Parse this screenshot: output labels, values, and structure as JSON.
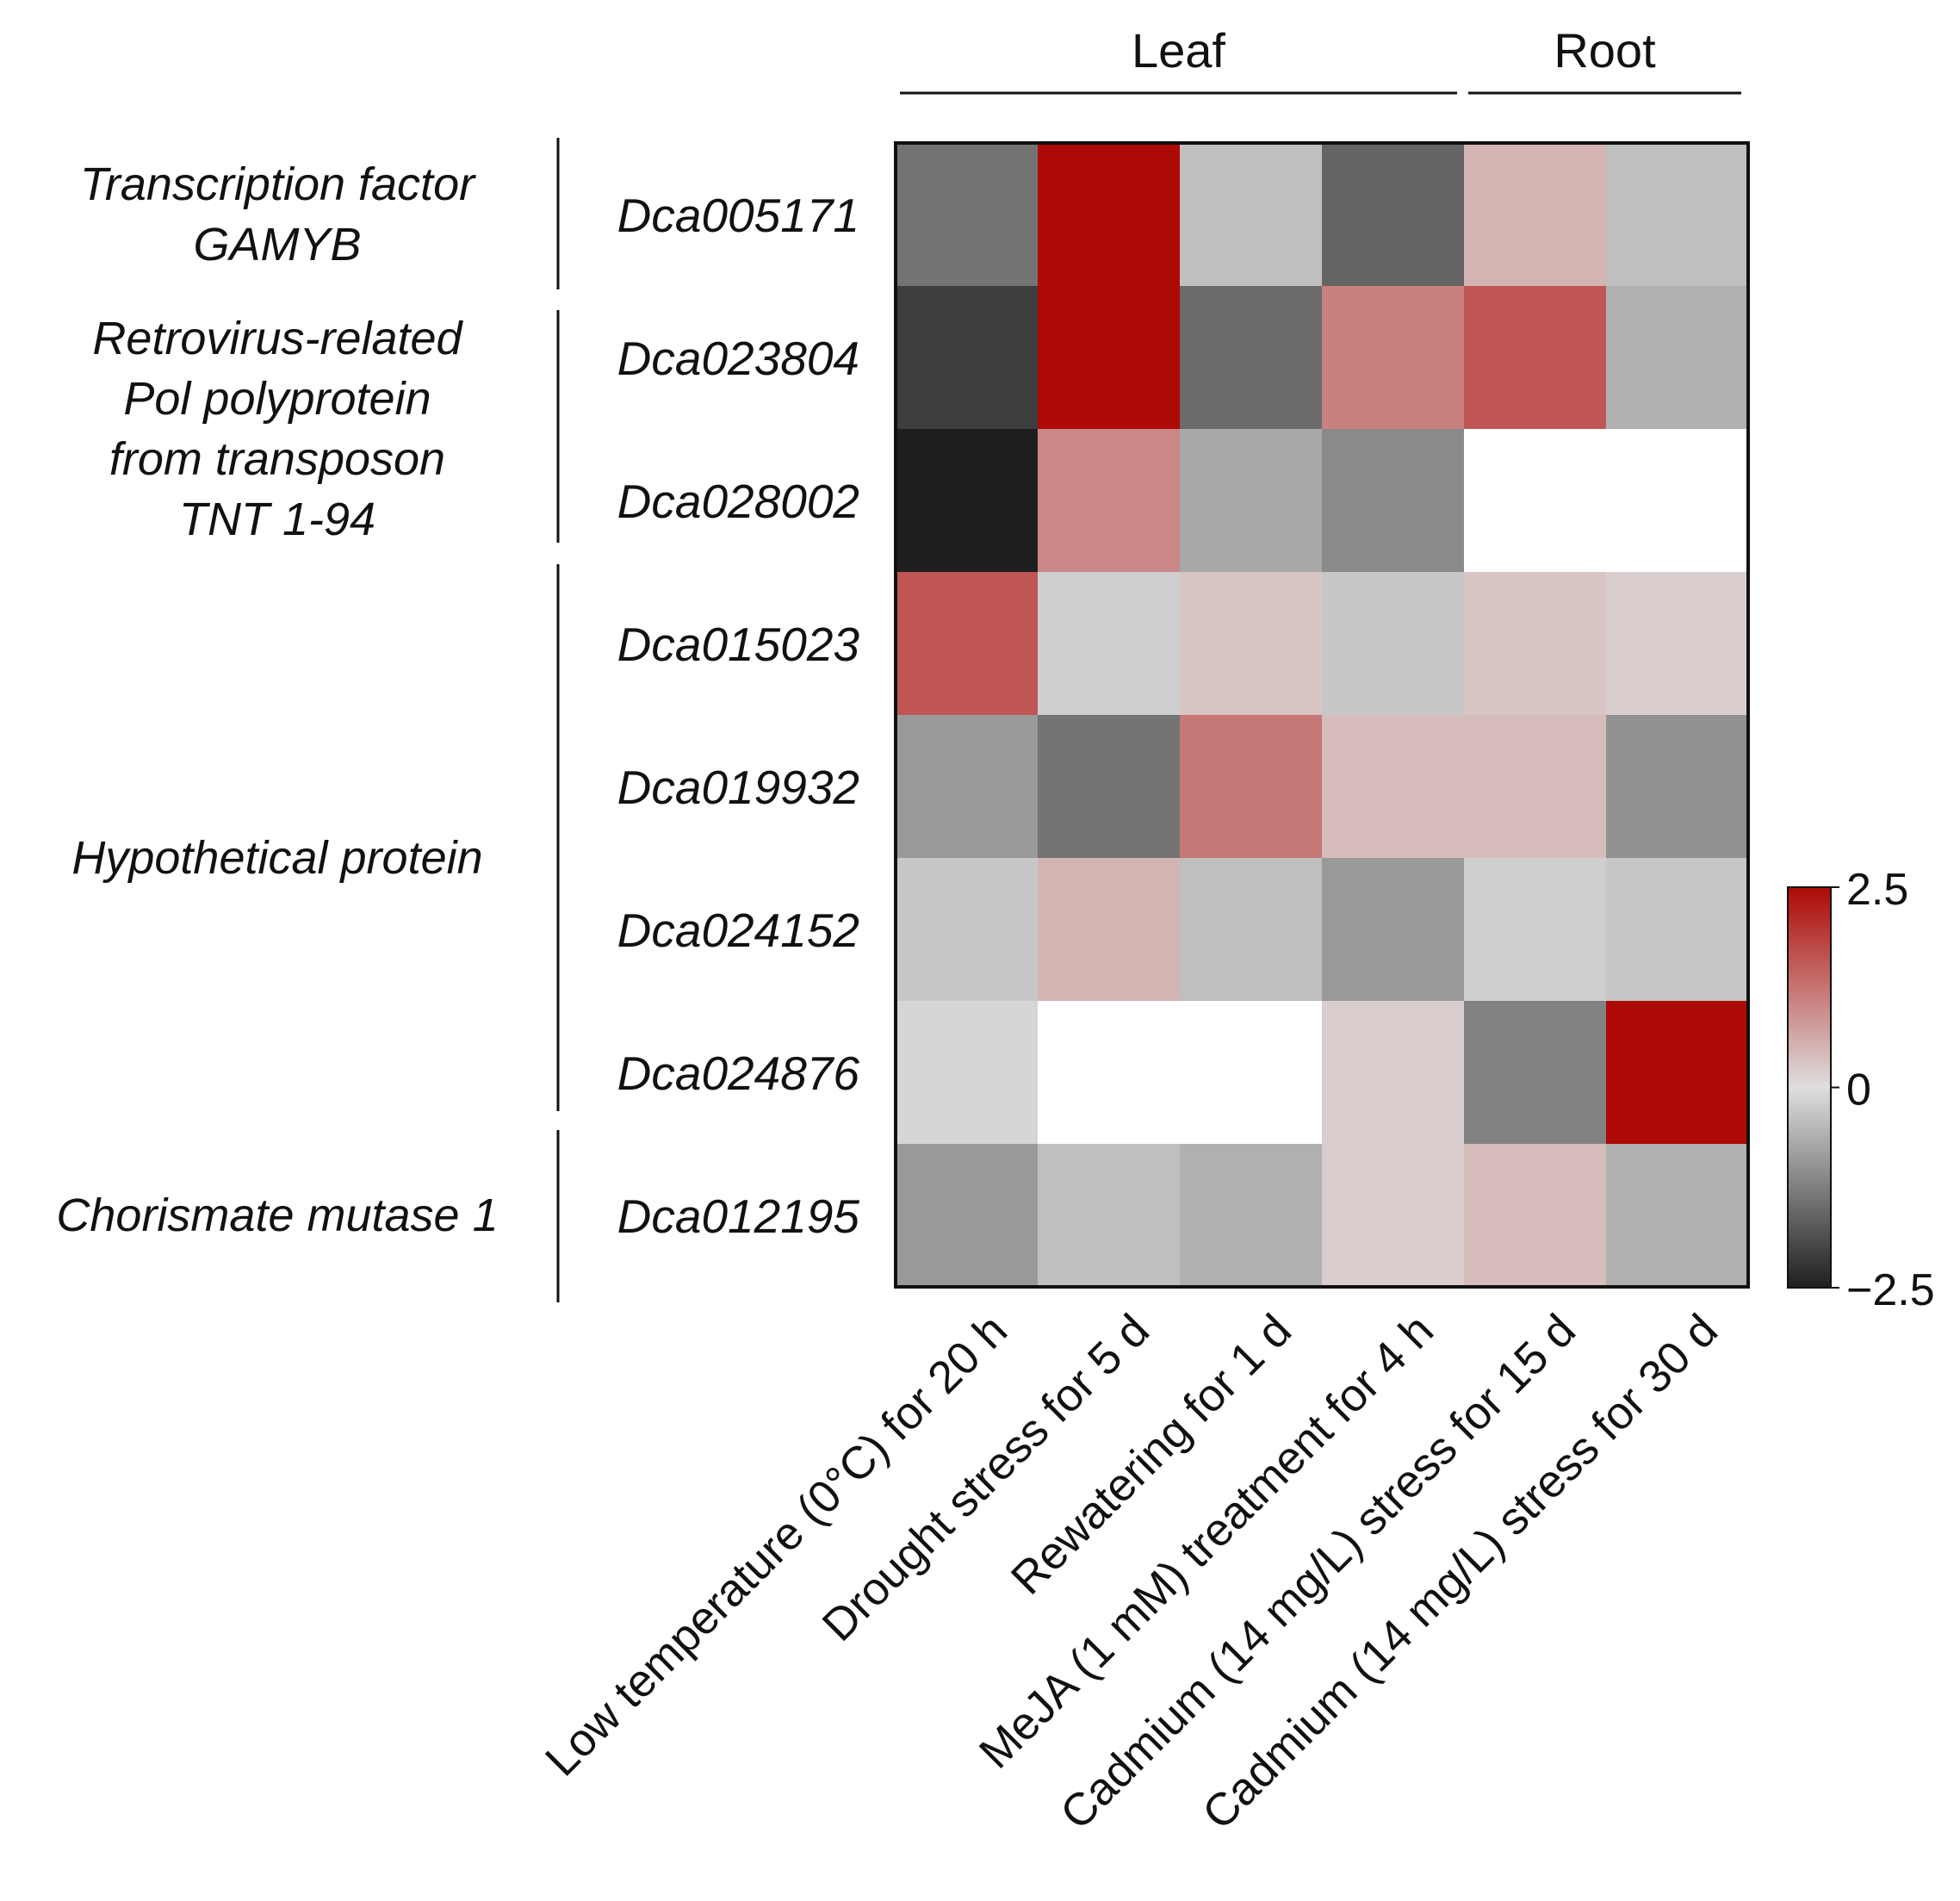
{
  "chart_data": {
    "type": "heatmap",
    "tissue_groups": [
      {
        "label": "Leaf",
        "columns": [
          0,
          1,
          2,
          3
        ]
      },
      {
        "label": "Root",
        "columns": [
          4,
          5
        ]
      }
    ],
    "columns": [
      "Low temperature (0°C) for 20 h",
      "Drought stress for 5 d",
      "Rewatering for 1 d",
      "MeJA (1 mM) treatment for 4 h",
      "Cadmium (14 mg/L) stress for 15 d",
      "Cadmium (14 mg/L) stress for 30 d"
    ],
    "rows": [
      "Dca005171",
      "Dca023804",
      "Dca028002",
      "Dca015023",
      "Dca019932",
      "Dca024152",
      "Dca024876",
      "Dca012195"
    ],
    "gene_groups": [
      {
        "lines": [
          "Transcription factor",
          "GAMYB"
        ],
        "rows": [
          0,
          0
        ]
      },
      {
        "lines": [
          "Retrovirus-related",
          "Pol polyprotein",
          "from transposon",
          "TNT 1-94"
        ],
        "rows": [
          1,
          2
        ]
      },
      {
        "lines": [
          "Hypothetical protein"
        ],
        "rows": [
          3,
          6
        ]
      },
      {
        "lines": [
          "Chorismate mutase 1"
        ],
        "rows": [
          7,
          7
        ]
      }
    ],
    "values": [
      [
        -1.4,
        3.0,
        -0.4,
        -1.6,
        0.5,
        -0.4
      ],
      [
        -2.1,
        3.0,
        -1.5,
        1.1,
        1.6,
        -0.6
      ],
      [
        -2.5,
        1.0,
        -0.7,
        -1.1,
        null,
        null
      ],
      [
        1.6,
        -0.2,
        0.3,
        -0.3,
        0.3,
        0.2
      ],
      [
        -0.9,
        -1.4,
        1.2,
        0.4,
        0.4,
        -1.0
      ],
      [
        -0.3,
        0.5,
        -0.4,
        -0.9,
        -0.2,
        -0.3
      ],
      [
        -0.1,
        null,
        null,
        0.2,
        -1.2,
        3.0
      ],
      [
        -0.9,
        -0.4,
        -0.6,
        0.2,
        0.4,
        -0.6
      ]
    ],
    "colorbar": {
      "min": -2.5,
      "max": 2.5,
      "ticks": [
        "2.5",
        "0",
        "−2.5"
      ],
      "tick_values": [
        2.5,
        0,
        -2.5
      ]
    },
    "colors": {
      "low": "#1f1f1f",
      "mid": "#dedede",
      "high": "#ad0a06",
      "missing": "#ffffff"
    }
  }
}
